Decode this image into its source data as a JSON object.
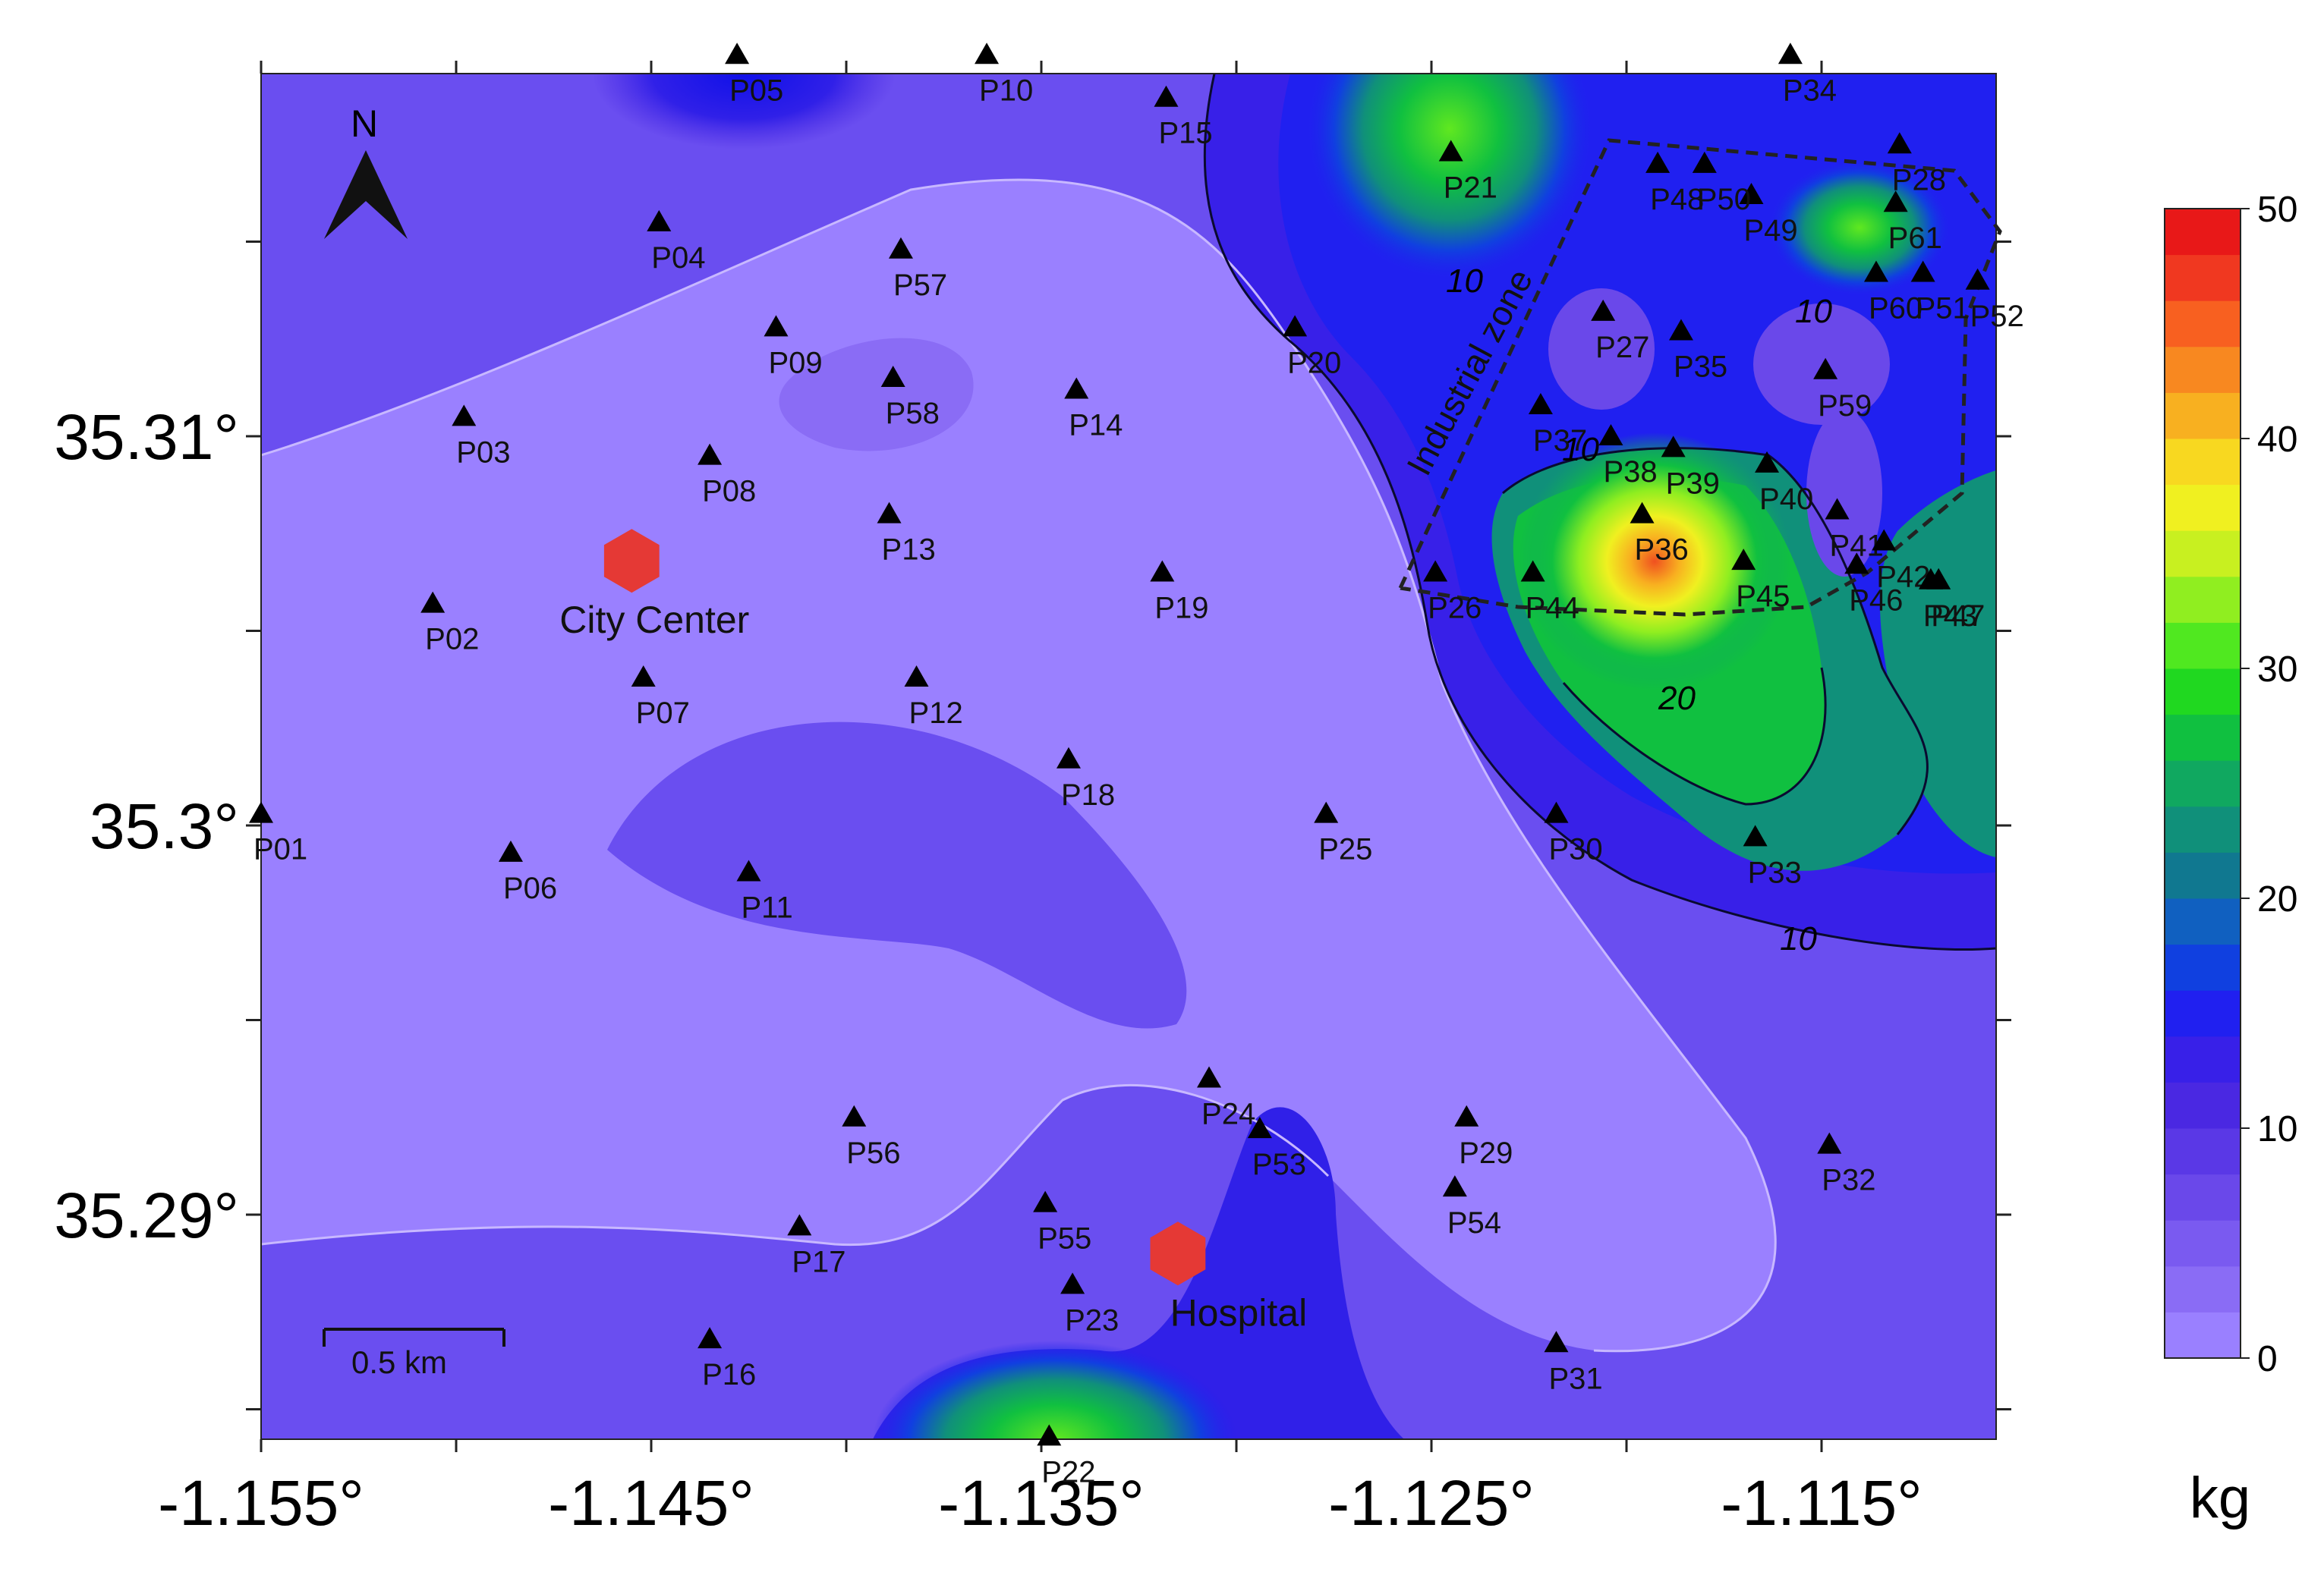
{
  "map": {
    "north_label": "N",
    "scale_bar_label": "0.5 km",
    "zone_label": "Industrial zone",
    "contour_labels": [
      "10",
      "20",
      "10",
      "10",
      "10"
    ],
    "x_ticks": [
      {
        "lon": -1.155,
        "label": "-1.155°"
      },
      {
        "lon": -1.145,
        "label": "-1.145°"
      },
      {
        "lon": -1.135,
        "label": "-1.135°"
      },
      {
        "lon": -1.125,
        "label": "-1.125°"
      },
      {
        "lon": -1.115,
        "label": "-1.115°"
      }
    ],
    "y_ticks": [
      {
        "lat": 35.31,
        "label": "35.31°"
      },
      {
        "lat": 35.3,
        "label": "35.3°"
      },
      {
        "lat": 35.29,
        "label": "35.29°"
      }
    ],
    "colorbar": {
      "unit": "kg",
      "min": 0,
      "max": 50,
      "tick_labels": [
        "50",
        "40",
        "30",
        "20",
        "10",
        "0"
      ],
      "colors": [
        "#9a80ff",
        "#8a6cf5",
        "#7a5af0",
        "#6a48ea",
        "#5a38e6",
        "#4a28e2",
        "#3820e8",
        "#2020f0",
        "#1040e0",
        "#1060c0",
        "#107890",
        "#10907a",
        "#10a860",
        "#10c040",
        "#20d820",
        "#50e820",
        "#90ee20",
        "#c8f020",
        "#f0f020",
        "#f8d820",
        "#f8b020",
        "#f88820",
        "#f86020",
        "#f03820",
        "#e81818"
      ]
    },
    "pois": [
      {
        "name": "City Center",
        "lon": -1.1455,
        "lat": 35.3068,
        "color": "#e53935"
      },
      {
        "name": "Hospital",
        "lon": -1.1315,
        "lat": 35.289,
        "color": "#e53935"
      }
    ],
    "stations": [
      {
        "id": "P01",
        "lon": -1.155,
        "lat": 35.3003
      },
      {
        "id": "P02",
        "lon": -1.1506,
        "lat": 35.3057
      },
      {
        "id": "P03",
        "lon": -1.1498,
        "lat": 35.3105
      },
      {
        "id": "P04",
        "lon": -1.1448,
        "lat": 35.3155
      },
      {
        "id": "P05",
        "lon": -1.1428,
        "lat": 35.3198
      },
      {
        "id": "P06",
        "lon": -1.1486,
        "lat": 35.2993
      },
      {
        "id": "P07",
        "lon": -1.1452,
        "lat": 35.3038
      },
      {
        "id": "P08",
        "lon": -1.1435,
        "lat": 35.3095
      },
      {
        "id": "P09",
        "lon": -1.1418,
        "lat": 35.3128
      },
      {
        "id": "P10",
        "lon": -1.1364,
        "lat": 35.3198
      },
      {
        "id": "P11",
        "lon": -1.1425,
        "lat": 35.2988
      },
      {
        "id": "P12",
        "lon": -1.1382,
        "lat": 35.3038
      },
      {
        "id": "P13",
        "lon": -1.1389,
        "lat": 35.308
      },
      {
        "id": "P14",
        "lon": -1.1341,
        "lat": 35.3112
      },
      {
        "id": "P15",
        "lon": -1.1318,
        "lat": 35.3187
      },
      {
        "id": "P16",
        "lon": -1.1435,
        "lat": 35.2868
      },
      {
        "id": "P17",
        "lon": -1.1412,
        "lat": 35.2897
      },
      {
        "id": "P18",
        "lon": -1.1343,
        "lat": 35.3017
      },
      {
        "id": "P19",
        "lon": -1.1319,
        "lat": 35.3065
      },
      {
        "id": "P20",
        "lon": -1.1285,
        "lat": 35.3128
      },
      {
        "id": "P21",
        "lon": -1.1245,
        "lat": 35.3173
      },
      {
        "id": "P22",
        "lon": -1.1348,
        "lat": 35.2843
      },
      {
        "id": "P23",
        "lon": -1.1342,
        "lat": 35.2882
      },
      {
        "id": "P24",
        "lon": -1.1307,
        "lat": 35.2935
      },
      {
        "id": "P25",
        "lon": -1.1277,
        "lat": 35.3003
      },
      {
        "id": "P26",
        "lon": -1.1249,
        "lat": 35.3065
      },
      {
        "id": "P27",
        "lon": -1.1206,
        "lat": 35.3132
      },
      {
        "id": "P28",
        "lon": -1.113,
        "lat": 35.3175
      },
      {
        "id": "P29",
        "lon": -1.1241,
        "lat": 35.2925
      },
      {
        "id": "P30",
        "lon": -1.1218,
        "lat": 35.3003
      },
      {
        "id": "P31",
        "lon": -1.1218,
        "lat": 35.2867
      },
      {
        "id": "P32",
        "lon": -1.1148,
        "lat": 35.2918
      },
      {
        "id": "P33",
        "lon": -1.1167,
        "lat": 35.2997
      },
      {
        "id": "P34",
        "lon": -1.1158,
        "lat": 35.3198
      },
      {
        "id": "P35",
        "lon": -1.1186,
        "lat": 35.3127
      },
      {
        "id": "P36",
        "lon": -1.1196,
        "lat": 35.308
      },
      {
        "id": "P37",
        "lon": -1.1222,
        "lat": 35.3108
      },
      {
        "id": "P38",
        "lon": -1.1204,
        "lat": 35.31
      },
      {
        "id": "P39",
        "lon": -1.1188,
        "lat": 35.3097
      },
      {
        "id": "P40",
        "lon": -1.1164,
        "lat": 35.3093
      },
      {
        "id": "P41",
        "lon": -1.1146,
        "lat": 35.3081
      },
      {
        "id": "P42",
        "lon": -1.1134,
        "lat": 35.3073
      },
      {
        "id": "P43",
        "lon": -1.1122,
        "lat": 35.3063
      },
      {
        "id": "P44",
        "lon": -1.1224,
        "lat": 35.3065
      },
      {
        "id": "P45",
        "lon": -1.117,
        "lat": 35.3068
      },
      {
        "id": "P46",
        "lon": -1.1141,
        "lat": 35.3067
      },
      {
        "id": "P47",
        "lon": -1.112,
        "lat": 35.3063
      },
      {
        "id": "P48",
        "lon": -1.1192,
        "lat": 35.317
      },
      {
        "id": "P49",
        "lon": -1.1168,
        "lat": 35.3162
      },
      {
        "id": "P50",
        "lon": -1.118,
        "lat": 35.317
      },
      {
        "id": "P51",
        "lon": -1.1124,
        "lat": 35.3142
      },
      {
        "id": "P52",
        "lon": -1.111,
        "lat": 35.314
      },
      {
        "id": "P53",
        "lon": -1.1294,
        "lat": 35.2922
      },
      {
        "id": "P54",
        "lon": -1.1244,
        "lat": 35.2907
      },
      {
        "id": "P55",
        "lon": -1.1349,
        "lat": 35.2903
      },
      {
        "id": "P56",
        "lon": -1.1398,
        "lat": 35.2925
      },
      {
        "id": "P57",
        "lon": -1.1386,
        "lat": 35.3148
      },
      {
        "id": "P58",
        "lon": -1.1388,
        "lat": 35.3115
      },
      {
        "id": "P59",
        "lon": -1.1149,
        "lat": 35.3117
      },
      {
        "id": "P60",
        "lon": -1.1136,
        "lat": 35.3142
      },
      {
        "id": "P61",
        "lon": -1.1131,
        "lat": 35.316
      }
    ]
  }
}
